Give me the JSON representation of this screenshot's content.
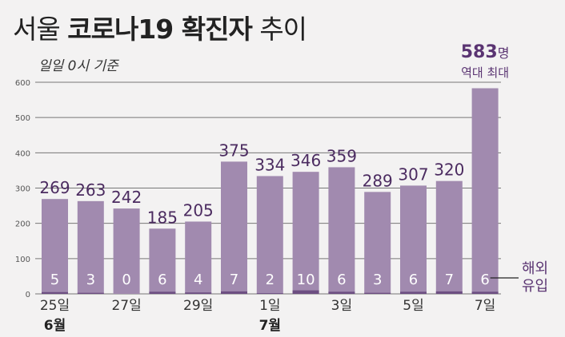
{
  "title": {
    "prefix": "서울",
    "bold": "코로나19 확진자",
    "suffix": "추이"
  },
  "subtitle": "일일 0시 기준",
  "colors": {
    "bar_total": "#a18aaf",
    "bar_import": "#6d4f82",
    "value_text": "#4b2b60",
    "highlight": "#5a3472",
    "grid": "#777777",
    "axis_text": "#333333",
    "background": "#f3f2f2"
  },
  "chart_data": {
    "type": "bar",
    "categories": [
      "6월 25일",
      "6월 26일",
      "6월 27일",
      "6월 28일",
      "6월 29일",
      "6월 30일",
      "7월 1일",
      "7월 2일",
      "7월 3일",
      "7월 4일",
      "7월 5일",
      "7월 6일",
      "7월 7일"
    ],
    "x_tick_labels": [
      "25일",
      "",
      "27일",
      "",
      "29일",
      "",
      "1일",
      "",
      "3일",
      "",
      "5일",
      "",
      "7일"
    ],
    "month_labels": [
      {
        "index": 0,
        "text": "6월"
      },
      {
        "index": 6,
        "text": "7월"
      }
    ],
    "series": [
      {
        "name": "",
        "values": [
          269,
          263,
          242,
          185,
          205,
          375,
          334,
          346,
          359,
          289,
          307,
          320,
          583
        ]
      },
      {
        "name": "해외유입",
        "values": [
          5,
          3,
          0,
          6,
          4,
          7,
          2,
          10,
          6,
          3,
          6,
          7,
          6
        ]
      }
    ],
    "ylim": [
      0,
      600
    ],
    "yticks": [
      0,
      100,
      200,
      300,
      400,
      500,
      600
    ],
    "grid": true,
    "annotation": {
      "index": 12,
      "value_text": "583",
      "unit": "명",
      "note": "역대 최대"
    },
    "legend_label_lines": [
      "해외",
      "유입"
    ]
  }
}
